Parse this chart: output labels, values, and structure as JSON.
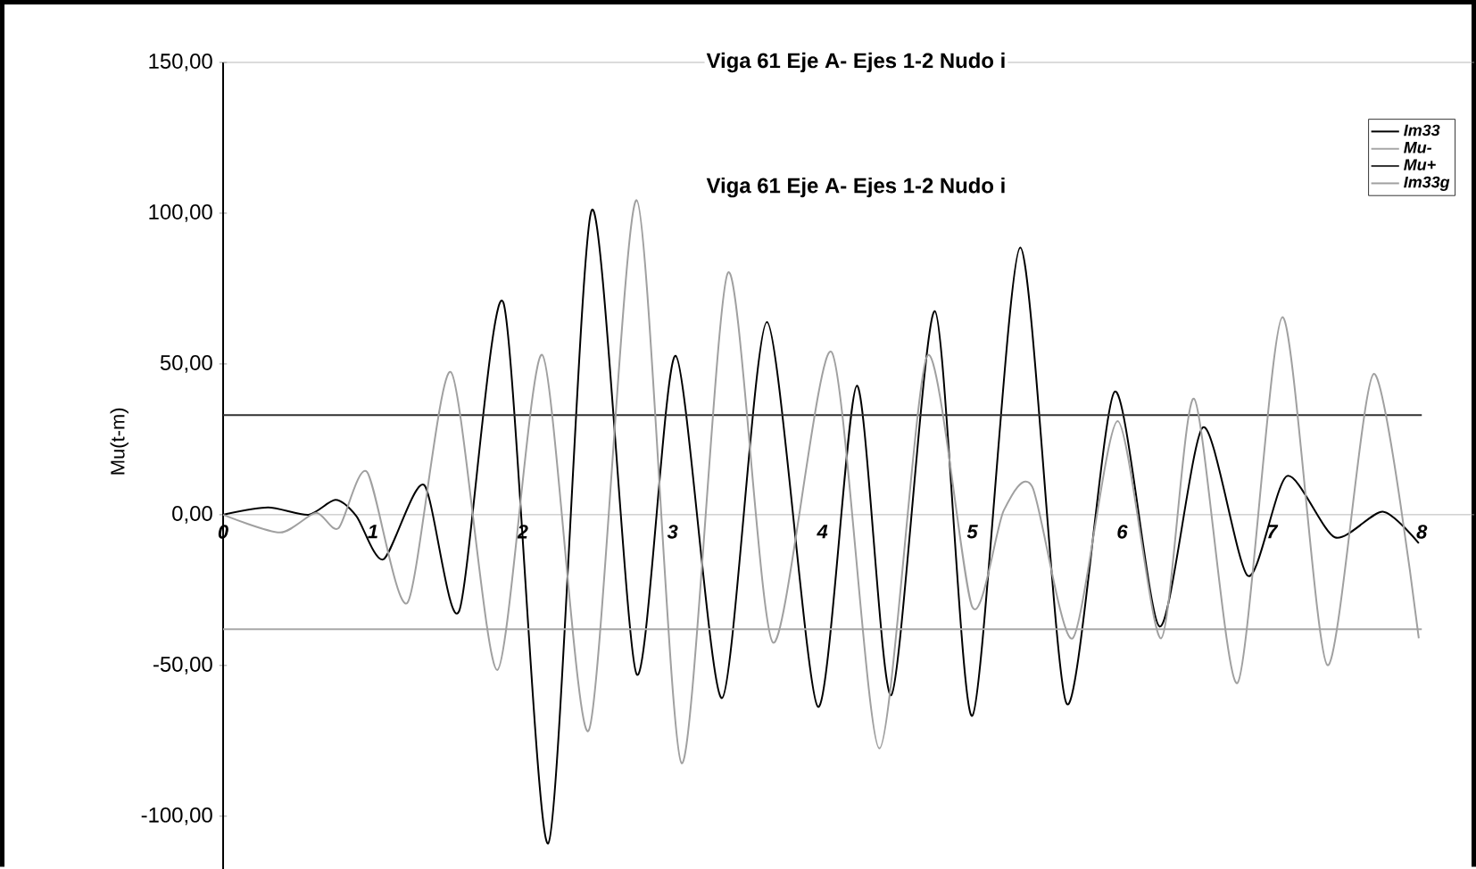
{
  "chart_data": {
    "type": "line",
    "title": "Viga 61 Eje A- Ejes 1-2  Nudo i",
    "subtitle": "Viga 61 Eje A- Ejes 1-2 Nudo i",
    "ylabel": "Mu(t-m)",
    "xlim": [
      0,
      8.35
    ],
    "ylim": [
      -117.5,
      150
    ],
    "xticks": [
      0,
      1,
      2,
      3,
      4,
      5,
      6,
      7,
      8
    ],
    "yticks": [
      {
        "value": -100,
        "label": "-100,00"
      },
      {
        "value": -50,
        "label": "-50,00"
      },
      {
        "value": 0,
        "label": "0,00"
      },
      {
        "value": 50,
        "label": "50,00"
      },
      {
        "value": 100,
        "label": "100,00"
      },
      {
        "value": 150,
        "label": "150,00"
      }
    ],
    "legend": "top right",
    "series": [
      {
        "name": "Im33",
        "color": "#000000",
        "x": [
          0,
          0.3,
          0.57,
          0.75,
          0.89,
          1.07,
          1.34,
          1.575,
          1.87,
          2.17,
          2.46,
          2.76,
          3.02,
          3.33,
          3.63,
          3.97,
          4.23,
          4.46,
          4.75,
          5.0,
          5.32,
          5.63,
          5.95,
          6.25,
          6.54,
          6.84,
          7.1,
          7.42,
          7.74,
          7.98
        ],
        "values": [
          0,
          2.4,
          0,
          4.9,
          -0.5,
          -14.8,
          9.9,
          -32,
          70.4,
          -109,
          101,
          -52.9,
          52.7,
          -60.8,
          63.9,
          -63.7,
          42.8,
          -59.8,
          67.5,
          -66.7,
          88.6,
          -62.7,
          40.8,
          -37.1,
          29,
          -20.3,
          12.8,
          -7.5,
          1,
          -9.5
        ]
      },
      {
        "name": "Mu-",
        "color": "#a8a8a8",
        "x": [
          0,
          8
        ],
        "values": [
          -38,
          -38
        ]
      },
      {
        "name": "Mu+",
        "color": "#303030",
        "x": [
          0,
          8
        ],
        "values": [
          33,
          33
        ]
      },
      {
        "name": "Im33g",
        "color": "#a0a0a0",
        "x": [
          0,
          0.38,
          0.62,
          0.77,
          0.96,
          1.23,
          1.52,
          1.83,
          2.13,
          2.44,
          2.76,
          3.06,
          3.37,
          3.67,
          4.06,
          4.38,
          4.7,
          5.0,
          5.21,
          5.4,
          5.67,
          5.97,
          6.26,
          6.48,
          6.77,
          7.07,
          7.37,
          7.68,
          7.98
        ],
        "values": [
          0,
          -5.9,
          0.6,
          -4.5,
          14.2,
          -29.2,
          47.3,
          -51.5,
          53,
          -71.6,
          104.3,
          -82.4,
          80.3,
          -42.4,
          54,
          -77.5,
          52.7,
          -30.6,
          1.4,
          9.3,
          -41,
          31,
          -41,
          38.5,
          -55.8,
          65.5,
          -49.9,
          46.7,
          -41
        ]
      }
    ]
  }
}
